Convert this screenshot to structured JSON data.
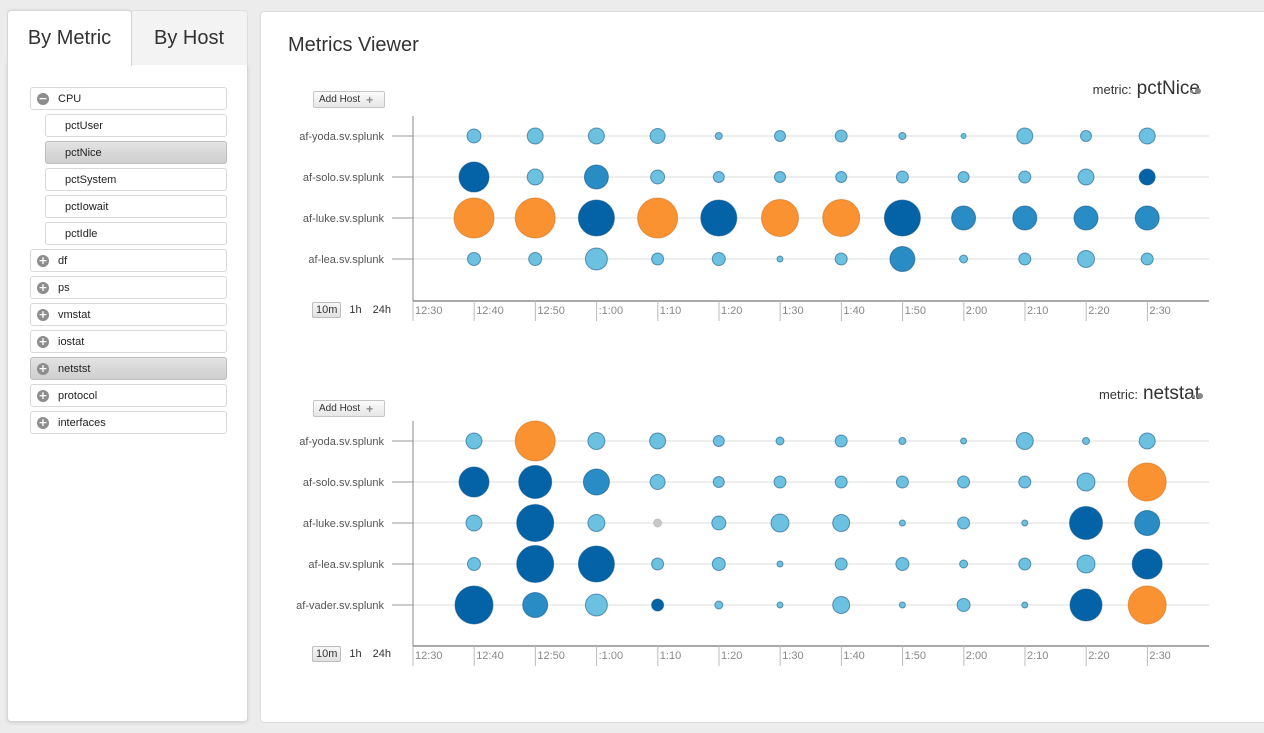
{
  "sidebar": {
    "tabs": [
      "By Metric",
      "By Host"
    ],
    "tree": [
      {
        "label": "CPU",
        "toggle": "−",
        "type": "parent",
        "selected": false
      },
      {
        "label": "pctUser",
        "type": "child",
        "selected": false
      },
      {
        "label": "pctNice",
        "type": "child",
        "selected": true
      },
      {
        "label": "pctSystem",
        "type": "child",
        "selected": false
      },
      {
        "label": "pctIowait",
        "type": "child",
        "selected": false
      },
      {
        "label": "pctIdle",
        "type": "child",
        "selected": false
      },
      {
        "label": "df",
        "toggle": "+",
        "type": "parent",
        "selected": false
      },
      {
        "label": "ps",
        "toggle": "+",
        "type": "parent",
        "selected": false
      },
      {
        "label": "vmstat",
        "toggle": "+",
        "type": "parent",
        "selected": false
      },
      {
        "label": "iostat",
        "toggle": "+",
        "type": "parent",
        "selected": false
      },
      {
        "label": "netstst",
        "toggle": "+",
        "type": "parent",
        "selected": true
      },
      {
        "label": "protocol",
        "toggle": "+",
        "type": "parent",
        "selected": false
      },
      {
        "label": "interfaces",
        "toggle": "+",
        "type": "parent",
        "selected": false
      }
    ]
  },
  "main": {
    "title": "Metrics Viewer",
    "add_host_label": "Add Host",
    "metric_prefix": "metric:",
    "range_options": [
      "10m",
      "1h",
      "24h"
    ],
    "active_range": "10m"
  },
  "colors": {
    "light": "#6cc0e0",
    "medium": "#2a8cc4",
    "dark": "#0463a7",
    "orange": "#fb9232",
    "gray": "#c8c8c8"
  },
  "chart_data": [
    {
      "type": "scatter",
      "metric": "pctNice",
      "x_ticks": [
        "12:30",
        "12:40",
        "12:50",
        ":1:00",
        "1:10",
        "1:20",
        "1:30",
        "1:40",
        "1:50",
        "2:00",
        "2:10",
        "2:20",
        "2:30"
      ],
      "hosts": [
        "af-yoda.sv.splunk",
        "af-solo.sv.splunk",
        "af-luke.sv.splunk",
        "af-lea.sv.splunk"
      ],
      "points": [
        [
          [
            7,
            "light"
          ],
          [
            8,
            "light"
          ],
          [
            8,
            "light"
          ],
          [
            7.5,
            "light"
          ],
          [
            3.5,
            "light"
          ],
          [
            5.5,
            "light"
          ],
          [
            6,
            "light"
          ],
          [
            3.5,
            "light"
          ],
          [
            2.5,
            "light"
          ],
          [
            8,
            "light"
          ],
          [
            5.5,
            "light"
          ],
          [
            8,
            "light"
          ]
        ],
        [
          [
            15,
            "dark"
          ],
          [
            8,
            "light"
          ],
          [
            12,
            "medium"
          ],
          [
            7,
            "light"
          ],
          [
            5.5,
            "light"
          ],
          [
            5.5,
            "light"
          ],
          [
            5.5,
            "light"
          ],
          [
            6,
            "light"
          ],
          [
            5.5,
            "light"
          ],
          [
            6,
            "light"
          ],
          [
            8,
            "light"
          ],
          [
            8,
            "dark"
          ]
        ],
        [
          [
            20,
            "orange"
          ],
          [
            20,
            "orange"
          ],
          [
            18,
            "dark"
          ],
          [
            20,
            "orange"
          ],
          [
            18,
            "dark"
          ],
          [
            18.5,
            "orange"
          ],
          [
            18.5,
            "orange"
          ],
          [
            18,
            "dark"
          ],
          [
            12,
            "medium"
          ],
          [
            12,
            "medium"
          ],
          [
            12,
            "medium"
          ],
          [
            12,
            "medium"
          ]
        ],
        [
          [
            6.5,
            "light"
          ],
          [
            6.5,
            "light"
          ],
          [
            11,
            "light"
          ],
          [
            6,
            "light"
          ],
          [
            6.5,
            "light"
          ],
          [
            3,
            "light"
          ],
          [
            6,
            "light"
          ],
          [
            12.5,
            "medium"
          ],
          [
            4,
            "light"
          ],
          [
            6,
            "light"
          ],
          [
            8.5,
            "light"
          ],
          [
            6,
            "light"
          ]
        ]
      ]
    },
    {
      "type": "scatter",
      "metric": "netstat",
      "x_ticks": [
        "12:30",
        "12:40",
        "12:50",
        ":1:00",
        "1:10",
        "1:20",
        "1:30",
        "1:40",
        "1:50",
        "2:00",
        "2:10",
        "2:20",
        "2:30"
      ],
      "hosts": [
        "af-yoda.sv.splunk",
        "af-solo.sv.splunk",
        "af-luke.sv.splunk",
        "af-lea.sv.splunk",
        "af-vader.sv.splunk"
      ],
      "points": [
        [
          [
            8,
            "light"
          ],
          [
            20,
            "orange"
          ],
          [
            8.5,
            "light"
          ],
          [
            8,
            "light"
          ],
          [
            5.5,
            "light"
          ],
          [
            4,
            "light"
          ],
          [
            6,
            "light"
          ],
          [
            3.5,
            "light"
          ],
          [
            3,
            "light"
          ],
          [
            8.5,
            "light"
          ],
          [
            3.5,
            "light"
          ],
          [
            8,
            "light"
          ]
        ],
        [
          [
            15,
            "dark"
          ],
          [
            16.5,
            "dark"
          ],
          [
            13,
            "medium"
          ],
          [
            7.5,
            "light"
          ],
          [
            5.5,
            "light"
          ],
          [
            6,
            "light"
          ],
          [
            6,
            "light"
          ],
          [
            6,
            "light"
          ],
          [
            6,
            "light"
          ],
          [
            6,
            "light"
          ],
          [
            9,
            "light"
          ],
          [
            19,
            "orange"
          ]
        ],
        [
          [
            8,
            "light"
          ],
          [
            18.5,
            "dark"
          ],
          [
            8.5,
            "light"
          ],
          [
            4,
            "gray"
          ],
          [
            7,
            "light"
          ],
          [
            9,
            "light"
          ],
          [
            8.5,
            "light"
          ],
          [
            3,
            "light"
          ],
          [
            6,
            "light"
          ],
          [
            3,
            "light"
          ],
          [
            16.5,
            "dark"
          ],
          [
            12.5,
            "medium"
          ]
        ],
        [
          [
            6.5,
            "light"
          ],
          [
            18.5,
            "dark"
          ],
          [
            18,
            "dark"
          ],
          [
            6,
            "light"
          ],
          [
            6.5,
            "light"
          ],
          [
            3,
            "light"
          ],
          [
            6,
            "light"
          ],
          [
            6.5,
            "light"
          ],
          [
            4,
            "light"
          ],
          [
            6,
            "light"
          ],
          [
            9,
            "light"
          ],
          [
            15,
            "dark"
          ]
        ],
        [
          [
            19,
            "dark"
          ],
          [
            12.5,
            "medium"
          ],
          [
            11,
            "light"
          ],
          [
            6,
            "dark"
          ],
          [
            4,
            "light"
          ],
          [
            3,
            "light"
          ],
          [
            8.5,
            "light"
          ],
          [
            3,
            "light"
          ],
          [
            6.5,
            "light"
          ],
          [
            3,
            "light"
          ],
          [
            16,
            "dark"
          ],
          [
            19,
            "orange"
          ]
        ]
      ]
    }
  ]
}
